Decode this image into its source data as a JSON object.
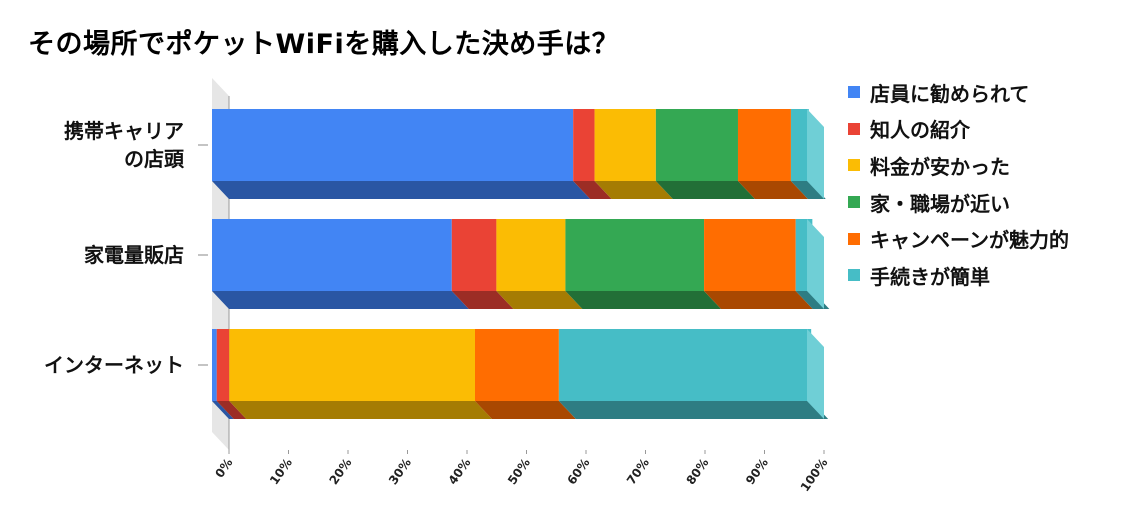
{
  "chart_data": {
    "type": "bar",
    "stacked": true,
    "percent": true,
    "orientation": "horizontal",
    "three_d": true,
    "title": "その場所でポケットWiFiを購入した決め手は？",
    "categories": [
      [
        "携帯キャリア",
        "の店頭"
      ],
      [
        "家電量販店"
      ],
      [
        "インターネット"
      ]
    ],
    "series": [
      {
        "name": "店員に勧められて",
        "color": "#4285f4",
        "shade": "#2a56a3",
        "values": [
          60.7,
          40.3,
          0.8
        ]
      },
      {
        "name": "知人の紹介",
        "color": "#ea4335",
        "shade": "#9c2d25",
        "values": [
          3.6,
          7.5,
          2.1
        ]
      },
      {
        "name": "料金が安かった",
        "color": "#fbbc04",
        "shade": "#a57c03",
        "values": [
          10.3,
          11.6,
          41.3
        ]
      },
      {
        "name": "家・職場が近い",
        "color": "#34a853",
        "shade": "#226f37",
        "values": [
          13.8,
          23.3,
          0
        ]
      },
      {
        "name": "キャンペーンが魅力的",
        "color": "#ff6d01",
        "shade": "#a94801",
        "values": [
          8.9,
          15.4,
          14.1
        ]
      },
      {
        "name": "手続きが簡単",
        "color": "#46bdc6",
        "shade": "#2e7d83",
        "values": [
          3.0,
          2.8,
          42.4
        ]
      }
    ],
    "xlim": [
      0,
      100
    ],
    "x_ticks": [
      "0%",
      "10%",
      "20%",
      "30%",
      "40%",
      "50%",
      "60%",
      "70%",
      "80%",
      "90%",
      "100%"
    ],
    "legend_position": "right"
  }
}
